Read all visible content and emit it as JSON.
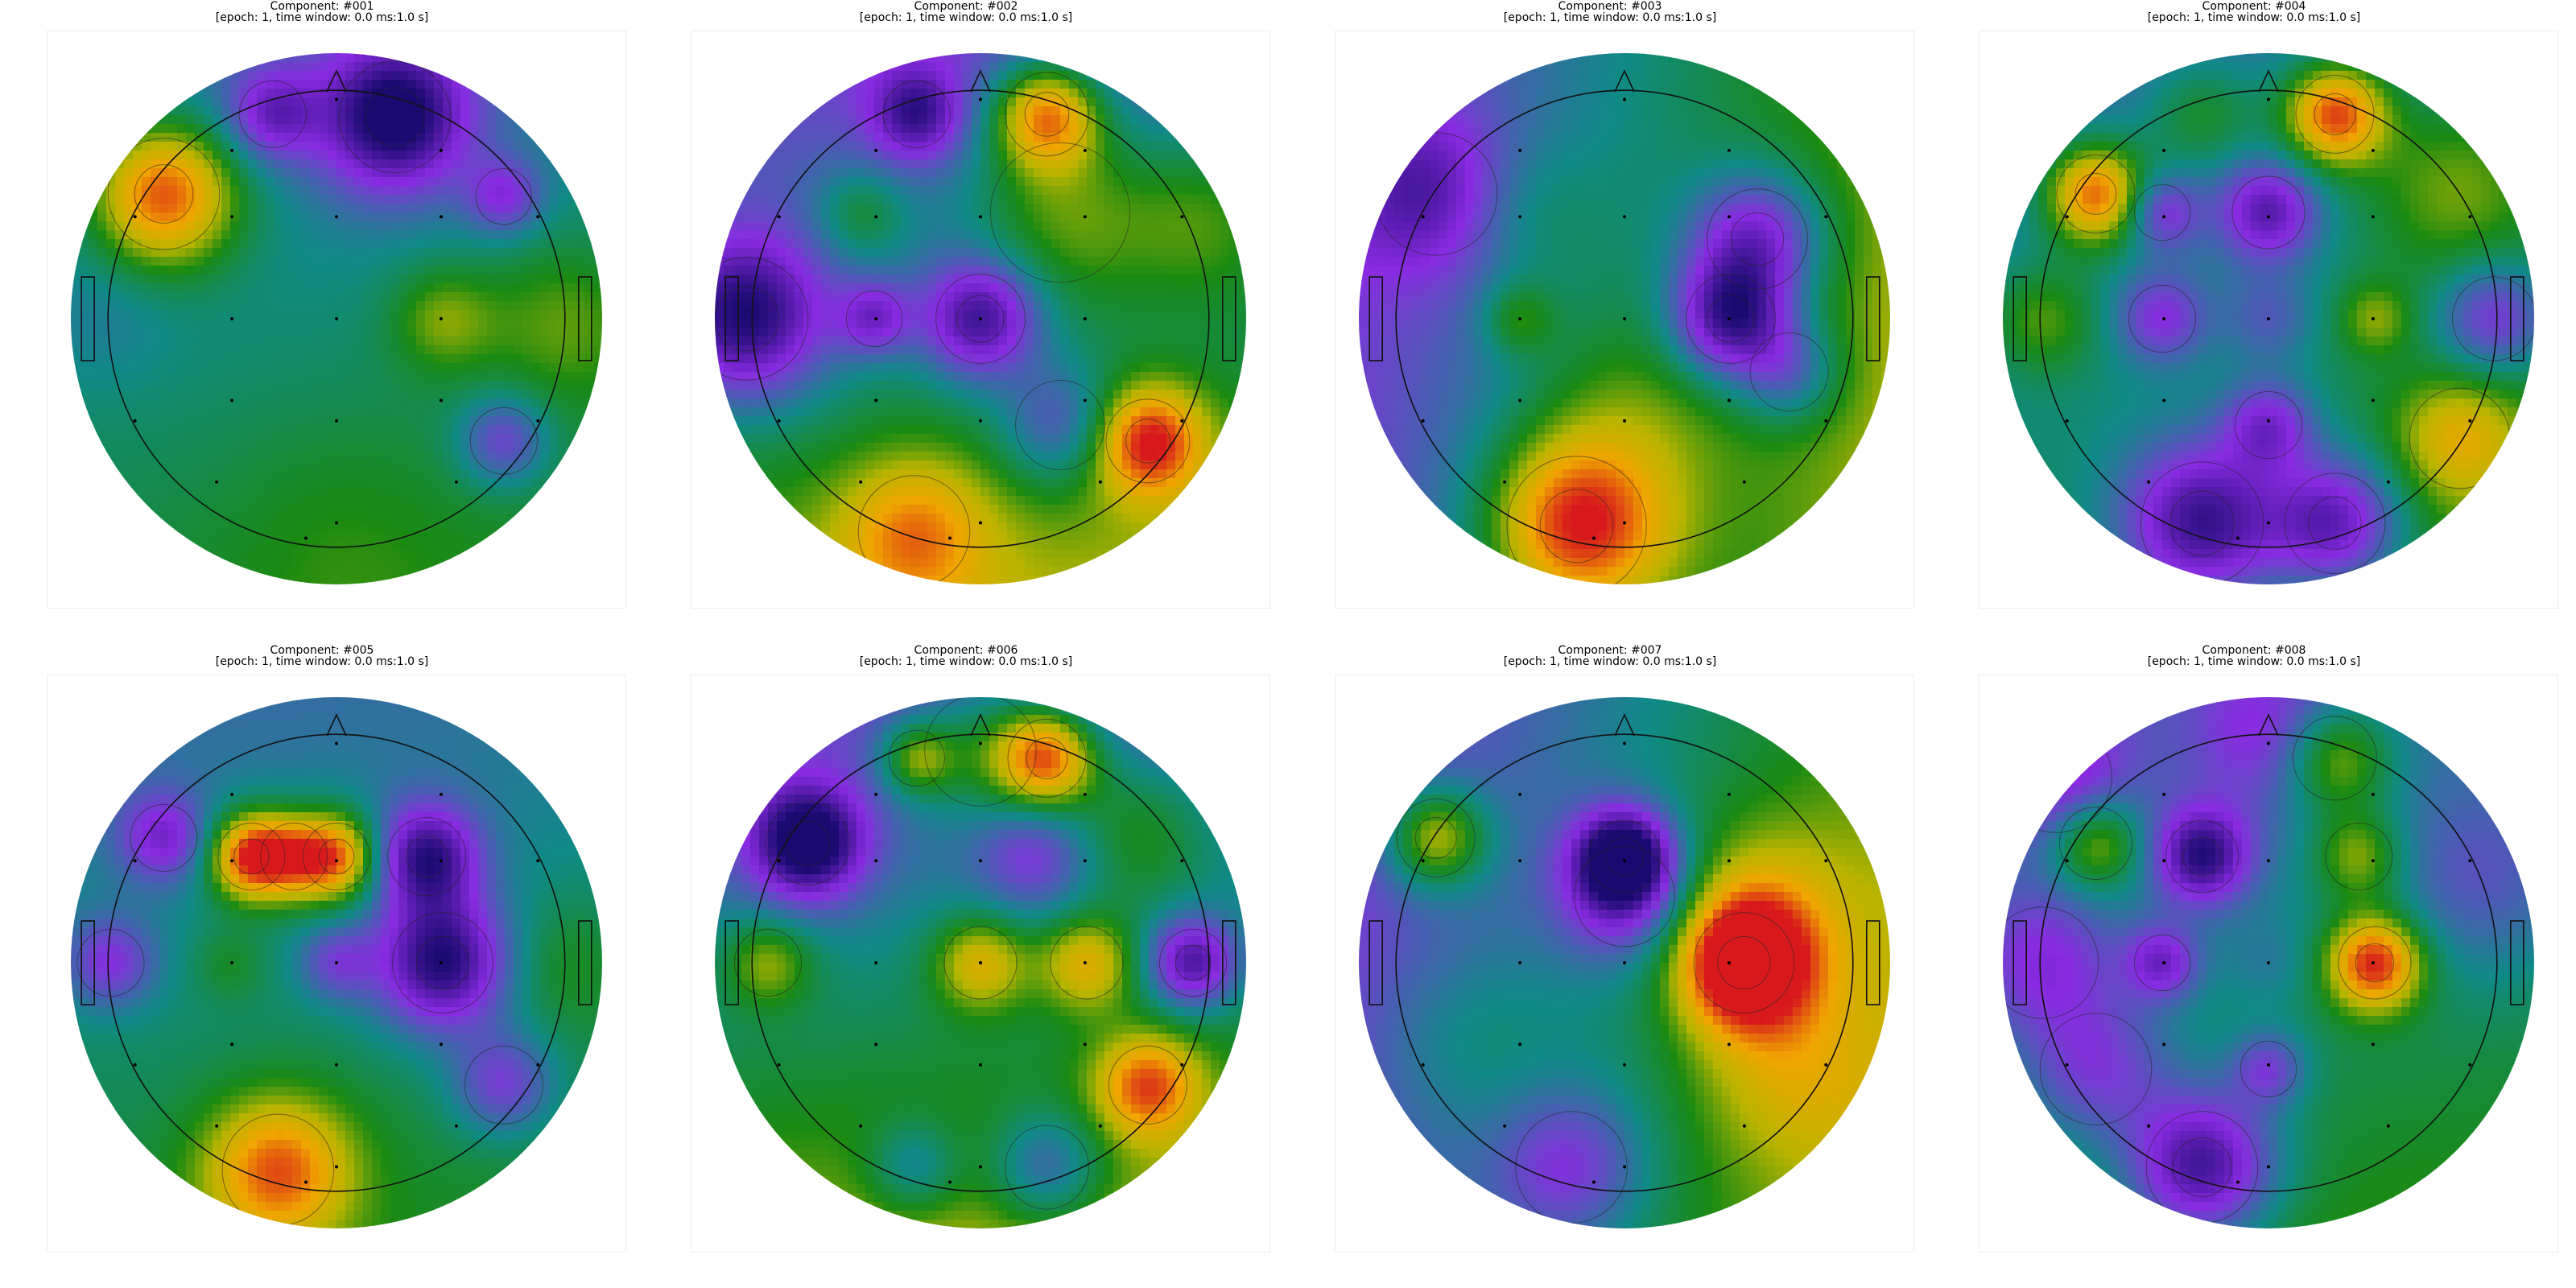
{
  "epoch_label": "[epoch: 1, time window: 0.0 ms:1.0 s]",
  "colors": {
    "red": "#d7191c",
    "orange": "#f0a500",
    "yellow": "#b8b400",
    "green": "#1b8a12",
    "teal": "#0f8a86",
    "purple": "#8a2be2",
    "navy": "#1a0a70"
  },
  "electrodes": [
    [
      0.0,
      -0.86
    ],
    [
      -0.41,
      -0.66
    ],
    [
      0.41,
      -0.66
    ],
    [
      -0.79,
      -0.4
    ],
    [
      -0.41,
      -0.4
    ],
    [
      0.0,
      -0.4
    ],
    [
      0.41,
      -0.4
    ],
    [
      0.79,
      -0.4
    ],
    [
      -0.41,
      0.0
    ],
    [
      0.0,
      0.0
    ],
    [
      0.41,
      0.0
    ],
    [
      -0.79,
      0.4
    ],
    [
      -0.41,
      0.32
    ],
    [
      0.0,
      0.4
    ],
    [
      0.41,
      0.32
    ],
    [
      0.79,
      0.4
    ],
    [
      -0.47,
      0.64
    ],
    [
      0.47,
      0.64
    ],
    [
      0.0,
      0.8
    ],
    [
      -0.12,
      0.86
    ]
  ],
  "components": [
    {
      "name": "Component: #001",
      "base": [
        0.05,
        0.2
      ],
      "blobs": [
        [
          -0.65,
          -0.47,
          0.2,
          1.0
        ],
        [
          0.22,
          -0.76,
          0.2,
          -1.0
        ],
        [
          -0.24,
          -0.77,
          0.12,
          -0.55
        ],
        [
          0.63,
          -0.46,
          0.1,
          -0.5
        ],
        [
          0.63,
          0.46,
          0.12,
          -0.55
        ],
        [
          0.4,
          0.0,
          0.14,
          0.35
        ],
        [
          0.85,
          0.0,
          0.22,
          0.3
        ],
        [
          0.0,
          0.8,
          0.3,
          0.1
        ],
        [
          -0.85,
          0.0,
          0.18,
          -0.1
        ]
      ]
    },
    {
      "name": "Component: #002",
      "base": [
        0.05,
        0.45
      ],
      "blobs": [
        [
          0.25,
          -0.77,
          0.15,
          1.0
        ],
        [
          0.3,
          -0.4,
          0.25,
          0.45
        ],
        [
          -0.88,
          0.0,
          0.22,
          -0.95
        ],
        [
          0.0,
          0.0,
          0.16,
          -0.9
        ],
        [
          -0.24,
          -0.77,
          0.12,
          -0.6
        ],
        [
          -0.4,
          0.0,
          0.1,
          -0.55
        ],
        [
          0.63,
          0.46,
          0.15,
          0.85
        ],
        [
          -0.25,
          0.8,
          0.2,
          0.5
        ],
        [
          0.3,
          0.4,
          0.16,
          -0.5
        ],
        [
          -0.45,
          -0.4,
          0.12,
          0.35
        ],
        [
          0.85,
          -0.4,
          0.25,
          0.4
        ]
      ]
    },
    {
      "name": "Component: #003",
      "base": [
        0.45,
        0.05
      ],
      "blobs": [
        [
          -0.18,
          0.78,
          0.25,
          1.0
        ],
        [
          0.4,
          0.0,
          0.16,
          -1.0
        ],
        [
          0.5,
          -0.3,
          0.18,
          -0.8
        ],
        [
          -0.71,
          -0.47,
          0.22,
          -0.5
        ],
        [
          -0.4,
          0.0,
          0.1,
          0.35
        ],
        [
          0.62,
          0.2,
          0.14,
          -0.5
        ],
        [
          0.0,
          0.3,
          0.3,
          0.25
        ],
        [
          -0.4,
          -0.4,
          0.2,
          0.25
        ]
      ]
    },
    {
      "name": "Component: #004",
      "base": [
        0.1,
        0.2
      ],
      "blobs": [
        [
          0.25,
          -0.77,
          0.14,
          1.0
        ],
        [
          -0.65,
          -0.47,
          0.14,
          1.0
        ],
        [
          -0.25,
          0.77,
          0.22,
          -1.0
        ],
        [
          0.25,
          0.77,
          0.18,
          -0.85
        ],
        [
          0.0,
          -0.4,
          0.13,
          -0.7
        ],
        [
          -0.4,
          -0.4,
          0.1,
          -0.5
        ],
        [
          0.85,
          0.0,
          0.15,
          -0.6
        ],
        [
          0.0,
          0.4,
          0.12,
          -0.6
        ],
        [
          -0.4,
          0.0,
          0.12,
          -0.5
        ],
        [
          -0.85,
          0.0,
          0.15,
          0.4
        ],
        [
          0.72,
          0.45,
          0.18,
          0.5
        ],
        [
          -0.25,
          -0.77,
          0.15,
          0.35
        ],
        [
          0.4,
          0.0,
          0.1,
          0.35
        ],
        [
          0.0,
          0.0,
          0.12,
          -0.3
        ],
        [
          0.7,
          -0.5,
          0.25,
          0.4
        ]
      ]
    },
    {
      "name": "Component: #005",
      "base": [
        0.03,
        0.2
      ],
      "blobs": [
        [
          -0.32,
          -0.4,
          0.12,
          1.0
        ],
        [
          0.0,
          -0.4,
          0.12,
          0.85
        ],
        [
          -0.16,
          -0.4,
          0.12,
          0.45
        ],
        [
          0.4,
          0.0,
          0.18,
          -1.0
        ],
        [
          0.34,
          -0.4,
          0.14,
          -0.85
        ],
        [
          -0.65,
          -0.47,
          0.12,
          -0.55
        ],
        [
          -0.85,
          0.0,
          0.12,
          -0.5
        ],
        [
          0.63,
          0.46,
          0.14,
          -0.55
        ],
        [
          0.0,
          0.0,
          0.1,
          -0.4
        ],
        [
          -0.22,
          0.78,
          0.2,
          0.75
        ],
        [
          -0.4,
          0.0,
          0.1,
          0.2
        ],
        [
          0.85,
          0.0,
          0.18,
          0.2
        ]
      ]
    },
    {
      "name": "Component: #006",
      "base": [
        0.05,
        0.45
      ],
      "blobs": [
        [
          0.25,
          -0.77,
          0.14,
          1.0
        ],
        [
          -0.24,
          -0.77,
          0.1,
          0.55
        ],
        [
          0.0,
          -0.8,
          0.2,
          0.45
        ],
        [
          -0.65,
          -0.45,
          0.15,
          -1.0
        ],
        [
          0.8,
          0.0,
          0.12,
          -0.85
        ],
        [
          0.0,
          0.0,
          0.13,
          0.6
        ],
        [
          0.4,
          0.0,
          0.13,
          0.6
        ],
        [
          0.63,
          0.46,
          0.14,
          0.7
        ],
        [
          -0.8,
          0.0,
          0.12,
          0.45
        ],
        [
          0.25,
          0.77,
          0.15,
          -0.55
        ],
        [
          -0.25,
          0.77,
          0.12,
          -0.4
        ],
        [
          0.2,
          -0.4,
          0.15,
          -0.4
        ],
        [
          0.6,
          -0.5,
          0.2,
          0.4
        ]
      ]
    },
    {
      "name": "Component: #007",
      "base": [
        0.45,
        0.1
      ],
      "blobs": [
        [
          0.0,
          -0.4,
          0.13,
          -1.0
        ],
        [
          0.0,
          -0.25,
          0.18,
          -0.6
        ],
        [
          0.45,
          0.0,
          0.18,
          1.0
        ],
        [
          -0.71,
          -0.47,
          0.14,
          0.8
        ],
        [
          -0.2,
          0.77,
          0.2,
          -0.5
        ],
        [
          0.5,
          -0.2,
          0.25,
          0.35
        ],
        [
          -0.6,
          0.3,
          0.25,
          0.2
        ],
        [
          0.6,
          0.4,
          0.25,
          0.3
        ]
      ]
    },
    {
      "name": "Component: #008",
      "base": [
        0.05,
        0.25
      ],
      "blobs": [
        [
          0.4,
          0.0,
          0.13,
          1.0
        ],
        [
          -0.25,
          0.77,
          0.2,
          -1.0
        ],
        [
          -0.25,
          -0.4,
          0.13,
          -0.85
        ],
        [
          -0.4,
          0.0,
          0.1,
          -0.6
        ],
        [
          0.0,
          0.4,
          0.1,
          -0.5
        ],
        [
          -0.65,
          0.4,
          0.2,
          -0.5
        ],
        [
          -0.85,
          0.0,
          0.2,
          -0.5
        ],
        [
          -0.65,
          -0.45,
          0.13,
          0.65
        ],
        [
          0.25,
          -0.77,
          0.15,
          0.65
        ],
        [
          0.34,
          -0.4,
          0.12,
          0.5
        ],
        [
          0.0,
          -0.85,
          0.2,
          -0.4
        ],
        [
          0.8,
          -0.3,
          0.25,
          -0.3
        ],
        [
          0.0,
          0.0,
          0.12,
          -0.15
        ],
        [
          -0.8,
          -0.7,
          0.2,
          -0.5
        ]
      ]
    }
  ]
}
